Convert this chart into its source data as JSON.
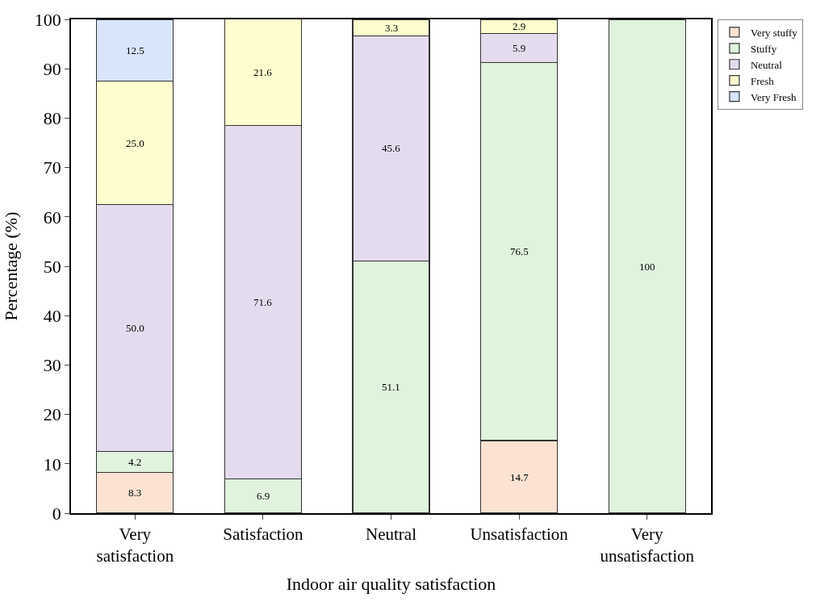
{
  "chart_data": {
    "type": "bar",
    "stacked": true,
    "xlabel": "Indoor air quality satisfaction",
    "ylabel": "Percentage (%)",
    "categories": [
      "Very\nsatisfaction",
      "Satisfaction",
      "Neutral",
      "Unsatisfaction",
      "Very\nunsatisfaction"
    ],
    "series": [
      {
        "name": "Very stuffy",
        "color": "#fce2d2",
        "values": [
          8.3,
          null,
          null,
          14.7,
          null
        ],
        "value_labels": [
          "8.3",
          null,
          null,
          "14.7",
          null
        ]
      },
      {
        "name": "Stuffy",
        "color": "#dff3dd",
        "values": [
          4.2,
          6.9,
          51.1,
          76.5,
          100
        ],
        "value_labels": [
          "4.2",
          "6.9",
          "51.1",
          "76.5",
          "100"
        ]
      },
      {
        "name": "Neutral",
        "color": "#e4dcee",
        "values": [
          50.0,
          71.6,
          45.6,
          5.9,
          null
        ],
        "value_labels": [
          "50.0",
          "71.6",
          "45.6",
          "5.9",
          null
        ]
      },
      {
        "name": "Fresh",
        "color": "#fdfdcf",
        "values": [
          25.0,
          21.6,
          3.3,
          2.9,
          null
        ],
        "value_labels": [
          "25.0",
          "21.6",
          "3.3",
          "2.9",
          null
        ]
      },
      {
        "name": "Very Fresh",
        "color": "#d8e5fb",
        "values": [
          12.5,
          null,
          null,
          null,
          null
        ],
        "value_labels": [
          "12.5",
          null,
          null,
          null,
          null
        ]
      }
    ],
    "ylim": [
      0,
      100
    ],
    "yticks": [
      0,
      10,
      20,
      30,
      40,
      50,
      60,
      70,
      80,
      90,
      100
    ],
    "legend": "top right"
  }
}
